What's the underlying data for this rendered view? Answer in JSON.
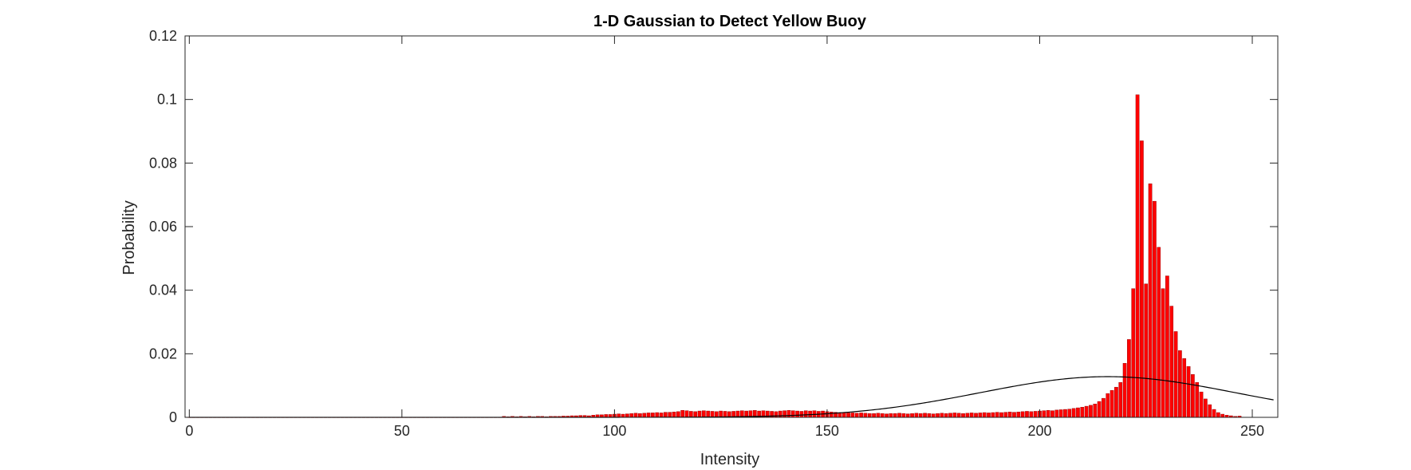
{
  "chart_data": {
    "type": "bar",
    "title": "1-D Gaussian to Detect Yellow Buoy",
    "xlabel": "Intensity",
    "ylabel": "Probability",
    "xlim": [
      -1,
      256
    ],
    "ylim": [
      0,
      0.12
    ],
    "x_ticks": [
      0,
      50,
      100,
      150,
      200,
      250
    ],
    "x_tick_labels": [
      "0",
      "50",
      "100",
      "150",
      "200",
      "250"
    ],
    "y_ticks": [
      0,
      0.02,
      0.04,
      0.06,
      0.08,
      0.1,
      0.12
    ],
    "y_tick_labels": [
      "0",
      "0.02",
      "0.04",
      "0.06",
      "0.08",
      "0.1",
      "0.12"
    ],
    "grid": false,
    "box": true,
    "bar_color": "#ff0000",
    "bar_edge_color": "#8b0000",
    "line_color": "#000000",
    "series": [
      {
        "kind": "histogram",
        "x_start": 0,
        "values": [
          0,
          0,
          0,
          0,
          0,
          0,
          0,
          0,
          0,
          0,
          0,
          0,
          0,
          0,
          0,
          0,
          0,
          0,
          0,
          0,
          0,
          0,
          0,
          0,
          0,
          0,
          0,
          0,
          0,
          0,
          0,
          0,
          0,
          0,
          0,
          0,
          0,
          0,
          0,
          0,
          0,
          0,
          0,
          0,
          0,
          0,
          0,
          0,
          0,
          0,
          0,
          0,
          0,
          0,
          0,
          0,
          0,
          0,
          0,
          0,
          0,
          0,
          0,
          0,
          0,
          0,
          0,
          0,
          0,
          0,
          0,
          0,
          0,
          0,
          0.0003,
          0.0002,
          0.0003,
          0.0002,
          0.0003,
          0.0002,
          0.0003,
          0.0002,
          0.0003,
          0.0003,
          0.0002,
          0.0003,
          0.0003,
          0.0003,
          0.0004,
          0.0004,
          0.0005,
          0.0005,
          0.0006,
          0.0006,
          0.0005,
          0.0007,
          0.0008,
          0.0008,
          0.0009,
          0.0009,
          0.001,
          0.0011,
          0.001,
          0.0011,
          0.0012,
          0.0013,
          0.0012,
          0.0013,
          0.0014,
          0.0014,
          0.0015,
          0.0014,
          0.0016,
          0.0016,
          0.0017,
          0.0018,
          0.0022,
          0.0021,
          0.0019,
          0.0018,
          0.002,
          0.0021,
          0.002,
          0.0019,
          0.0018,
          0.002,
          0.0019,
          0.0018,
          0.0019,
          0.002,
          0.0021,
          0.002,
          0.0021,
          0.0022,
          0.002,
          0.0021,
          0.002,
          0.0019,
          0.0018,
          0.002,
          0.0021,
          0.0022,
          0.0021,
          0.002,
          0.0019,
          0.0021,
          0.002,
          0.0021,
          0.0019,
          0.002,
          0.0018,
          0.0017,
          0.0016,
          0.0015,
          0.0015,
          0.0014,
          0.0014,
          0.0013,
          0.0014,
          0.0013,
          0.0012,
          0.0012,
          0.0013,
          0.0012,
          0.0011,
          0.0012,
          0.0012,
          0.0013,
          0.0012,
          0.0011,
          0.0012,
          0.0013,
          0.0012,
          0.0013,
          0.0012,
          0.0011,
          0.0012,
          0.0013,
          0.0012,
          0.0013,
          0.0014,
          0.0013,
          0.0012,
          0.0013,
          0.0014,
          0.0013,
          0.0014,
          0.0015,
          0.0014,
          0.0015,
          0.0016,
          0.0015,
          0.0016,
          0.0017,
          0.0016,
          0.0017,
          0.0018,
          0.0019,
          0.0018,
          0.0019,
          0.002,
          0.0021,
          0.0022,
          0.0021,
          0.0023,
          0.0024,
          0.0025,
          0.0026,
          0.0028,
          0.003,
          0.0032,
          0.0035,
          0.0038,
          0.0042,
          0.005,
          0.006,
          0.0075,
          0.0085,
          0.0095,
          0.011,
          0.017,
          0.0245,
          0.0405,
          0.1015,
          0.087,
          0.042,
          0.0735,
          0.068,
          0.0535,
          0.0405,
          0.0445,
          0.035,
          0.027,
          0.021,
          0.0185,
          0.016,
          0.0135,
          0.011,
          0.008,
          0.0058,
          0.004,
          0.0025,
          0.0015,
          0.001,
          0.0007,
          0.0005,
          0.0003,
          0.0004
        ]
      },
      {
        "kind": "gaussian",
        "mean": 216,
        "peak": 0.0128,
        "std": 30,
        "x_range": [
          0,
          255
        ]
      }
    ]
  }
}
